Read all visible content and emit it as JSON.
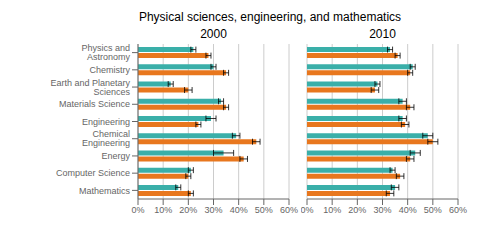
{
  "title": "Physical sciences, engineering, and mathematics",
  "chart_data": [
    {
      "type": "bar",
      "title": "2000",
      "orientation": "horizontal",
      "categories": [
        "Physics and Astronomy",
        "Chemistry",
        "Earth and Planetary Sciences",
        "Materials Science",
        "Engineering",
        "Chemical Engineering",
        "Energy",
        "Computer Science",
        "Mathematics"
      ],
      "series": [
        {
          "color": "#E8771E",
          "values": [
            28,
            35,
            20,
            35,
            24,
            47,
            42,
            20,
            21
          ],
          "errors": [
            1.0,
            1.0,
            1.5,
            1.0,
            1.0,
            1.5,
            1.5,
            1.0,
            1.0
          ]
        },
        {
          "color": "#3AAFA9",
          "values": [
            22,
            30,
            13,
            33,
            29,
            39,
            34,
            21,
            16
          ],
          "errors": [
            1.0,
            1.0,
            1.0,
            1.0,
            2.0,
            1.5,
            4.0,
            1.0,
            1.0
          ]
        }
      ],
      "xlim": [
        0,
        60
      ],
      "xticks": [
        {
          "value": 0,
          "label": "0%"
        },
        {
          "value": 10,
          "label": "10%"
        },
        {
          "value": 20,
          "label": "20%"
        },
        {
          "value": 30,
          "label": "30%"
        },
        {
          "value": 40,
          "label": "40%"
        },
        {
          "value": 50,
          "label": "50%"
        },
        {
          "value": 60,
          "label": "60%"
        }
      ],
      "grid": true
    },
    {
      "type": "bar",
      "title": "2010",
      "orientation": "horizontal",
      "categories": [
        "Physics and Astronomy",
        "Chemistry",
        "Earth and Planetary Sciences",
        "Materials Science",
        "Engineering",
        "Chemical Engineering",
        "Energy",
        "Computer Science",
        "Mathematics"
      ],
      "series": [
        {
          "color": "#E8771E",
          "values": [
            36,
            41,
            27,
            41,
            39,
            50,
            41,
            37,
            33
          ],
          "errors": [
            1.0,
            1.0,
            1.5,
            1.5,
            1.5,
            2.0,
            1.5,
            1.5,
            1.5
          ]
        },
        {
          "color": "#3AAFA9",
          "values": [
            33,
            42,
            28,
            38,
            38,
            48,
            43,
            34,
            35
          ],
          "errors": [
            1.0,
            1.0,
            1.0,
            1.5,
            1.5,
            2.0,
            2.0,
            1.0,
            1.5
          ]
        }
      ],
      "xlim": [
        0,
        60
      ],
      "xticks": [
        {
          "value": 0,
          "label": "0%"
        },
        {
          "value": 10,
          "label": "10%"
        },
        {
          "value": 20,
          "label": "20%"
        },
        {
          "value": 30,
          "label": "30%"
        },
        {
          "value": 40,
          "label": "40%"
        },
        {
          "value": 50,
          "label": "50%"
        },
        {
          "value": 60,
          "label": "60%"
        }
      ],
      "grid": true,
      "tick_labels": "x"
    }
  ]
}
